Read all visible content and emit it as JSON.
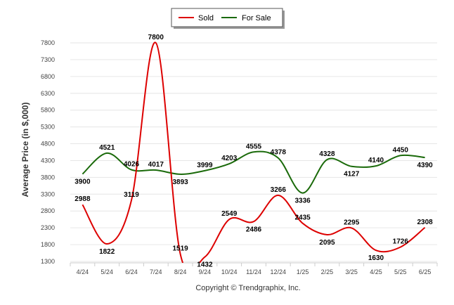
{
  "chart_data": {
    "type": "line",
    "categories": [
      "4/24",
      "5/24",
      "6/24",
      "7/24",
      "8/24",
      "9/24",
      "10/24",
      "11/24",
      "12/24",
      "1/25",
      "2/25",
      "3/25",
      "4/25",
      "5/25",
      "6/25"
    ],
    "series": [
      {
        "name": "Sold",
        "color": "#dd0000",
        "values": [
          2988,
          1822,
          3119,
          7800,
          1519,
          1432,
          2549,
          2486,
          3266,
          2435,
          2095,
          2295,
          1630,
          1726,
          2308
        ]
      },
      {
        "name": "For Sale",
        "color": "#1a6a0a",
        "values": [
          3900,
          4521,
          4026,
          4017,
          3893,
          3999,
          4203,
          4555,
          4378,
          3336,
          4328,
          4127,
          4140,
          4450,
          4390
        ]
      }
    ],
    "ylabel": "Average Price (in $,000)",
    "ylim": [
      1300,
      7800
    ],
    "yticks": [
      1300,
      1800,
      2300,
      2800,
      3300,
      3800,
      4300,
      4800,
      5300,
      5800,
      6300,
      6800,
      7300,
      7800
    ],
    "grid": true,
    "legend_position": "top-center",
    "credit": "Copyright © Trendgraphix, Inc."
  }
}
